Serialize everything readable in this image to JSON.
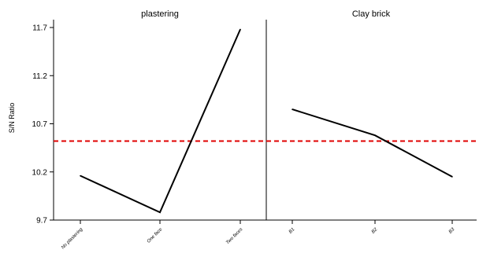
{
  "chart_data": {
    "type": "line",
    "ylabel": "S/N Ratio",
    "ylim": [
      9.7,
      11.7
    ],
    "yticks": [
      "9.7",
      "10.2",
      "10.7",
      "11.2",
      "11.7"
    ],
    "ytick_values": [
      9.7,
      10.2,
      10.7,
      11.2,
      11.7
    ],
    "reference_line": {
      "value": 10.52,
      "style": "dashed",
      "color": "#e00000"
    },
    "line_color": "#000000",
    "panels": [
      {
        "title": "plastering",
        "categories": [
          "No plastering",
          "One face",
          "Two faces"
        ],
        "values": [
          10.16,
          9.78,
          11.68
        ]
      },
      {
        "title": "Clay brick",
        "categories": [
          "B1",
          "B2",
          "B3"
        ],
        "values": [
          10.85,
          10.58,
          10.15
        ]
      }
    ]
  }
}
